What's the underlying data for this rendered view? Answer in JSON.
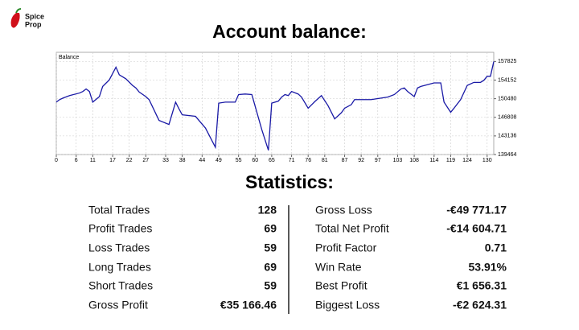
{
  "logo": {
    "line1": "Spice",
    "line2": "Prop"
  },
  "heading": "Account balance:",
  "chart_data": {
    "type": "line",
    "title": "Balance",
    "x": [
      0,
      1,
      2,
      4,
      7,
      8,
      9,
      10,
      11,
      13,
      14,
      16,
      18,
      19,
      21,
      23,
      24,
      25,
      27,
      28,
      31,
      34,
      36,
      37,
      38,
      42,
      45,
      48,
      49,
      51,
      54,
      55,
      57,
      59,
      62,
      64,
      65,
      67,
      68,
      69,
      70,
      71,
      73,
      74,
      76,
      78,
      80,
      82,
      84,
      86,
      87,
      89,
      90,
      92,
      95,
      98,
      100,
      102,
      104,
      105,
      106,
      108,
      109,
      110,
      114,
      116,
      117,
      119,
      120,
      122,
      124,
      126,
      128,
      129,
      130,
      131,
      132
    ],
    "series": [
      {
        "name": "Balance",
        "color": "#1a1aa6",
        "values": [
          149800,
          150300,
          150600,
          151100,
          151600,
          151900,
          152400,
          151900,
          149800,
          150900,
          152900,
          154200,
          156700,
          155200,
          154400,
          153100,
          152600,
          151800,
          150900,
          150300,
          146200,
          145400,
          149800,
          148500,
          147300,
          147000,
          144700,
          140900,
          149600,
          149800,
          149800,
          151300,
          151400,
          151300,
          144400,
          140300,
          149600,
          150000,
          150800,
          151300,
          151100,
          151900,
          151400,
          150800,
          148600,
          149900,
          151100,
          149100,
          146500,
          147700,
          148600,
          149300,
          150300,
          150300,
          150300,
          150600,
          150800,
          151300,
          152400,
          152600,
          151900,
          150900,
          152600,
          152900,
          153600,
          153600,
          149800,
          147800,
          148600,
          150300,
          153100,
          153700,
          153700,
          154100,
          154900,
          154900,
          157800
        ]
      }
    ],
    "xlim": [
      0,
      132
    ],
    "xticks": [
      0,
      6,
      11,
      17,
      22,
      27,
      33,
      38,
      44,
      49,
      55,
      60,
      65,
      71,
      76,
      81,
      87,
      92,
      97,
      103,
      108,
      114,
      119,
      124,
      130
    ],
    "ylim": [
      139464,
      159630
    ],
    "yticks": [
      139464,
      143136,
      146808,
      150480,
      154152,
      157825
    ],
    "grid": true
  },
  "stats_heading": "Statistics:",
  "stats_left": [
    [
      "Total Trades",
      "128"
    ],
    [
      "Profit Trades",
      "69"
    ],
    [
      "Loss Trades",
      "59"
    ],
    [
      "Long Trades",
      "69"
    ],
    [
      "Short Trades",
      "59"
    ],
    [
      "Gross Profit",
      "€35 166.46"
    ]
  ],
  "stats_right": [
    [
      "Gross Loss",
      "-€49 771.17"
    ],
    [
      "Total Net Profit",
      "-€14 604.71"
    ],
    [
      "Profit Factor",
      "0.71"
    ],
    [
      "Win Rate",
      "53.91%"
    ],
    [
      "Best Profit",
      "€1 656.31"
    ],
    [
      "Biggest Loss",
      "-€2 624.31"
    ]
  ]
}
